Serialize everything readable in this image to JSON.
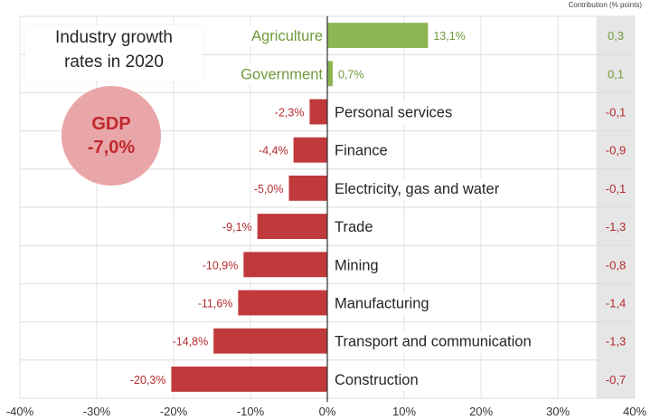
{
  "title_lines": [
    "Industry growth",
    "rates in 2020"
  ],
  "gdp": {
    "label": "GDP",
    "value": "-7,0%"
  },
  "contribution_header": "Contribution (% points)",
  "colors": {
    "positive": "#8db653",
    "negative": "#c0393b",
    "positive_text": "#6f9a3a",
    "negative_text": "#b52a2e",
    "label_text": "#262626"
  },
  "chart_data": {
    "type": "bar",
    "orientation": "horizontal",
    "xlim": [
      -40,
      40
    ],
    "xticks": [
      "-40%",
      "-30%",
      "-20%",
      "-10%",
      "0%",
      "10%",
      "20%",
      "30%",
      "40%"
    ],
    "categories": [
      "Agriculture",
      "Government",
      "Personal services",
      "Finance",
      "Electricity, gas and water",
      "Trade",
      "Mining",
      "Manufacturing",
      "Transport and communication",
      "Construction"
    ],
    "values": [
      13.1,
      0.7,
      -2.3,
      -4.4,
      -5.0,
      -9.1,
      -10.9,
      -11.6,
      -14.8,
      -20.3
    ],
    "value_labels": [
      "13,1%",
      "0,7%",
      "-2,3%",
      "-4,4%",
      "-5,0%",
      "-9,1%",
      "-10,9%",
      "-11,6%",
      "-14,8%",
      "-20,3%"
    ],
    "contribution": [
      "0,3",
      "0,1",
      "-0,1",
      "-0,9",
      "-0,1",
      "-1,3",
      "-0,8",
      "-1,4",
      "-1,3",
      "-0,7"
    ],
    "grid": true
  }
}
